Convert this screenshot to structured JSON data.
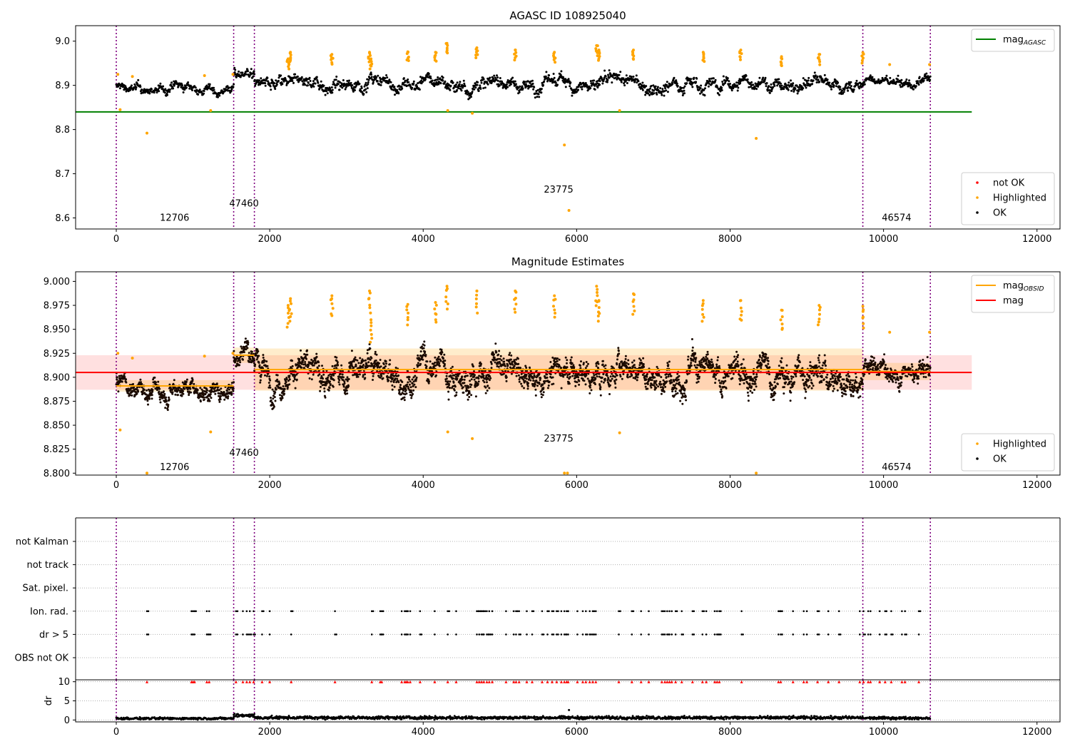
{
  "chart_data": [
    {
      "type": "scatter",
      "title": "AGASC ID 108925040",
      "xlim": [
        -530,
        12300
      ],
      "ylim": [
        8.575,
        9.035
      ],
      "xticks": [
        0,
        2000,
        4000,
        6000,
        8000,
        10000,
        12000
      ],
      "yticks": [
        8.6,
        8.7,
        8.8,
        8.9,
        9.0
      ],
      "ytick_labels": [
        "8.6",
        "8.7",
        "8.8",
        "8.9",
        "9.0"
      ],
      "grid": false,
      "vlines": [
        0,
        1530,
        1800,
        9730,
        10610
      ],
      "vline_color": "#800080",
      "obsids": [
        {
          "label": "12706",
          "x": 760,
          "y": 8.6
        },
        {
          "label": "47460",
          "x": 1665,
          "y": 8.632
        },
        {
          "label": "23775",
          "x": 5765,
          "y": 8.664
        },
        {
          "label": "46574",
          "x": 10170,
          "y": 8.6
        }
      ],
      "agasc_mag": {
        "value": 8.84,
        "x_range": [
          -530,
          11150
        ],
        "color": "#008000"
      },
      "ok_series": {
        "color": "#000000",
        "segments": [
          {
            "x": [
              0,
              1530
            ],
            "base": 8.892,
            "amp": 0.012
          },
          {
            "x": [
              1530,
              1800
            ],
            "base": 8.925,
            "amp": 0.014
          },
          {
            "x": [
              1800,
              9730
            ],
            "base": 8.904,
            "amp": 0.018
          },
          {
            "x": [
              9730,
              10610
            ],
            "base": 8.906,
            "amp": 0.012
          }
        ]
      },
      "highlighted_points": {
        "color": "#ffa500",
        "x": [
          20,
          50,
          210,
          400,
          1150,
          1230,
          1520,
          2240,
          2270,
          2810,
          3300,
          3320,
          3800,
          4160,
          4310,
          4320,
          4640,
          4700,
          5200,
          5710,
          5840,
          5900,
          6260,
          6290,
          6560,
          6740,
          7650,
          8140,
          8340,
          8670,
          9160,
          9730,
          10080,
          10600
        ],
        "y": [
          8.925,
          8.845,
          8.92,
          8.792,
          8.922,
          8.843,
          8.925,
          8.96,
          8.975,
          8.97,
          8.975,
          8.96,
          8.976,
          8.975,
          8.995,
          8.843,
          8.837,
          8.985,
          8.98,
          8.975,
          8.765,
          8.617,
          8.99,
          8.98,
          8.843,
          8.98,
          8.975,
          8.98,
          8.78,
          8.965,
          8.97,
          8.974,
          8.947,
          8.947
        ]
      },
      "legends": [
        {
          "position": "upper-right",
          "entries": [
            {
              "kind": "line",
              "label": "mag",
              "sub": "AGASC",
              "color": "#008000"
            }
          ]
        },
        {
          "position": "lower-right",
          "entries": [
            {
              "kind": "dot",
              "label": "not OK",
              "color": "#ff0000"
            },
            {
              "kind": "dot",
              "label": "Highlighted",
              "color": "#ffa500"
            },
            {
              "kind": "dot",
              "label": "OK",
              "color": "#000000"
            }
          ]
        }
      ]
    },
    {
      "type": "scatter",
      "title": "Magnitude Estimates",
      "xlim": [
        -530,
        12300
      ],
      "ylim": [
        8.798,
        9.01
      ],
      "xticks": [
        0,
        2000,
        4000,
        6000,
        8000,
        10000,
        12000
      ],
      "yticks": [
        8.8,
        8.825,
        8.85,
        8.875,
        8.9,
        8.925,
        8.95,
        8.975,
        9.0
      ],
      "ytick_labels": [
        "8.800",
        "8.825",
        "8.850",
        "8.875",
        "8.900",
        "8.925",
        "8.950",
        "8.975",
        "9.000"
      ],
      "grid": false,
      "vlines": [
        0,
        1530,
        1800,
        9730,
        10610
      ],
      "vline_color": "#800080",
      "obsids": [
        {
          "label": "12706",
          "x": 760,
          "y": 8.806
        },
        {
          "label": "47460",
          "x": 1665,
          "y": 8.821
        },
        {
          "label": "23775",
          "x": 5765,
          "y": 8.836
        },
        {
          "label": "46574",
          "x": 10170,
          "y": 8.806
        }
      ],
      "mag_overall": {
        "value": 8.905,
        "band": [
          8.887,
          8.923
        ],
        "x_range": [
          -530,
          11150
        ],
        "color": "#ff0000"
      },
      "mag_obsid": {
        "color": "#ffa500",
        "segments": [
          {
            "x": [
              0,
              1530
            ],
            "value": 8.891,
            "band": [
              8.885,
              8.897
            ]
          },
          {
            "x": [
              1530,
              1800
            ],
            "value": 8.923,
            "band": [
              8.915,
              8.931
            ]
          },
          {
            "x": [
              1800,
              9730
            ],
            "value": 8.908,
            "band": [
              8.886,
              8.93
            ]
          },
          {
            "x": [
              9730,
              10610
            ],
            "value": 8.906,
            "band": [
              8.897,
              8.915
            ]
          }
        ]
      },
      "ok_series": {
        "color": "#000000",
        "segments": [
          {
            "x": [
              0,
              1530
            ],
            "base": 8.889,
            "amp": 0.011
          },
          {
            "x": [
              1530,
              1800
            ],
            "base": 8.925,
            "amp": 0.013
          },
          {
            "x": [
              1800,
              9730
            ],
            "base": 8.905,
            "amp": 0.018
          },
          {
            "x": [
              9730,
              10610
            ],
            "base": 8.906,
            "amp": 0.012
          }
        ]
      },
      "highlighted_points": {
        "color": "#ffa500",
        "x": [
          20,
          50,
          210,
          400,
          1150,
          1230,
          1520,
          2240,
          2270,
          2810,
          3300,
          3320,
          3800,
          4160,
          4310,
          4320,
          4640,
          4700,
          5200,
          5710,
          5840,
          5880,
          6260,
          6290,
          6560,
          6740,
          7650,
          8140,
          8340,
          8670,
          9160,
          9730,
          10080,
          10600
        ],
        "y": [
          8.925,
          8.845,
          8.92,
          8.8,
          8.922,
          8.843,
          8.925,
          8.975,
          8.982,
          8.985,
          8.99,
          8.96,
          8.976,
          8.978,
          8.995,
          8.843,
          8.836,
          8.99,
          8.99,
          8.985,
          8.8,
          8.8,
          8.995,
          8.98,
          8.842,
          8.987,
          8.98,
          8.98,
          8.8,
          8.97,
          8.975,
          8.974,
          8.947,
          8.947
        ]
      },
      "legends": [
        {
          "position": "upper-right",
          "entries": [
            {
              "kind": "line",
              "label": "mag",
              "sub": "OBSID",
              "color": "#ffa500"
            },
            {
              "kind": "line",
              "label": "mag",
              "sub": "",
              "color": "#ff0000"
            }
          ]
        },
        {
          "position": "lower-right",
          "entries": [
            {
              "kind": "dot",
              "label": "Highlighted",
              "color": "#ffa500"
            },
            {
              "kind": "dot",
              "label": "OK",
              "color": "#000000"
            }
          ]
        }
      ]
    },
    {
      "type": "scatter",
      "title": "",
      "xlim": [
        -530,
        12300
      ],
      "categories": [
        "not Kalman",
        "not track",
        "Sat. pixel.",
        "Ion. rad.",
        "dr > 5",
        "OBS not OK"
      ],
      "grid": true,
      "vlines": [
        0,
        1530,
        1800,
        9730,
        10610
      ],
      "vline_color": "#800080",
      "flag_x": [
        400,
        980,
        1000,
        1020,
        1180,
        1210,
        1560,
        1650,
        1700,
        1740,
        1790,
        1900,
        2000,
        2280,
        2850,
        3330,
        3440,
        3460,
        3720,
        3760,
        3780,
        3800,
        3830,
        3960,
        4150,
        4320,
        4430,
        4700,
        4730,
        4760,
        4790,
        4830,
        4860,
        4900,
        5080,
        5180,
        5210,
        5250,
        5350,
        5420,
        5550,
        5620,
        5680,
        5740,
        5800,
        5840,
        5870,
        5890,
        6010,
        6080,
        6120,
        6170,
        6210,
        6250,
        6550,
        6720,
        6840,
        6940,
        7110,
        7150,
        7180,
        7210,
        7240,
        7290,
        7370,
        7510,
        7640,
        7690,
        7800,
        7830,
        7860,
        8150,
        8630,
        8660,
        8820,
        8960,
        9000,
        9140,
        9280,
        9420,
        9690,
        9740,
        9800,
        9830,
        9950,
        10020,
        10100,
        10240,
        10280,
        10460
      ],
      "flag_rows": [
        "Ion. rad.",
        "dr > 5"
      ],
      "marker_color": "#000000"
    },
    {
      "type": "line",
      "title": "",
      "xlim": [
        -530,
        12300
      ],
      "ylim": [
        -0.5,
        10.5
      ],
      "yticks": [
        0,
        5,
        10
      ],
      "ytick_labels": [
        "0",
        "5",
        "10"
      ],
      "xticks": [
        0,
        2000,
        4000,
        6000,
        8000,
        10000,
        12000
      ],
      "ylabel": "dr",
      "grid": true,
      "vlines": [
        0,
        1530,
        1800,
        9730,
        10610
      ],
      "vline_color": "#800080",
      "dr_segments": [
        {
          "x": [
            0,
            1530
          ],
          "base": 0.4,
          "amp": 0.25
        },
        {
          "x": [
            1530,
            1800
          ],
          "base": 1.2,
          "amp": 0.4
        },
        {
          "x": [
            1800,
            9730
          ],
          "base": 0.6,
          "amp": 0.35
        },
        {
          "x": [
            9730,
            10610
          ],
          "base": 0.5,
          "amp": 0.3
        }
      ],
      "dr_outliers": {
        "x": [
          5900
        ],
        "y": [
          2.6
        ]
      },
      "capped_value": 10,
      "capped_color": "#ff0000"
    }
  ]
}
